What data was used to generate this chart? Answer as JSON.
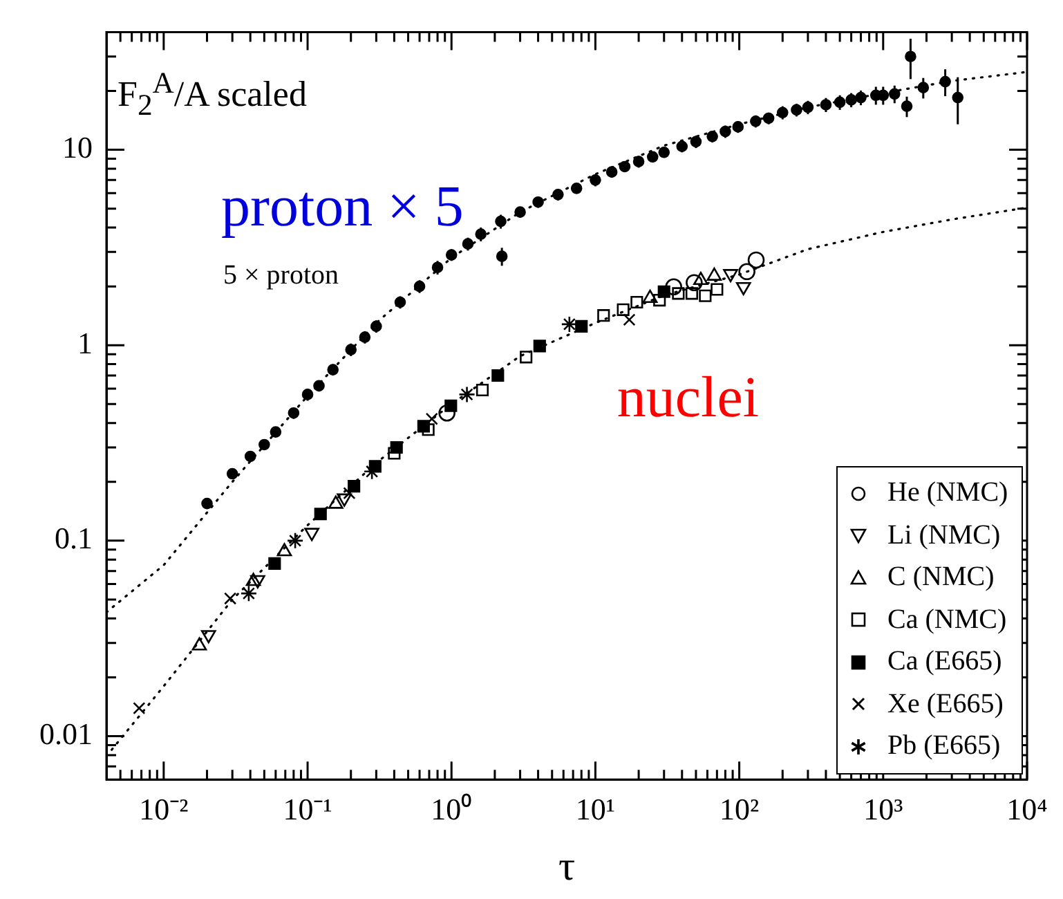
{
  "chart_data": {
    "type": "scatter",
    "xlabel": "τ",
    "log": "xy",
    "grid": false,
    "legend": "bottom right",
    "xlim": [
      0.004,
      10000
    ],
    "ylim": [
      0.006,
      40
    ],
    "xticks": [
      {
        "value": 0.005,
        "label": null
      },
      {
        "value": 0.006,
        "label": null
      },
      {
        "value": 0.007,
        "label": null
      },
      {
        "value": 0.008,
        "label": null
      },
      {
        "value": 0.009,
        "label": null
      },
      {
        "value": 0.01,
        "label": "10⁻²"
      },
      {
        "value": 0.02,
        "label": null
      },
      {
        "value": 0.03,
        "label": null
      },
      {
        "value": 0.04,
        "label": null
      },
      {
        "value": 0.05,
        "label": null
      },
      {
        "value": 0.06,
        "label": null
      },
      {
        "value": 0.07,
        "label": null
      },
      {
        "value": 0.08,
        "label": null
      },
      {
        "value": 0.09,
        "label": null
      },
      {
        "value": 0.1,
        "label": "10⁻¹"
      },
      {
        "value": 0.2,
        "label": null
      },
      {
        "value": 0.3,
        "label": null
      },
      {
        "value": 0.4,
        "label": null
      },
      {
        "value": 0.5,
        "label": null
      },
      {
        "value": 0.6,
        "label": null
      },
      {
        "value": 0.7,
        "label": null
      },
      {
        "value": 0.8,
        "label": null
      },
      {
        "value": 0.9,
        "label": null
      },
      {
        "value": 1,
        "label": "10⁰"
      },
      {
        "value": 2,
        "label": null
      },
      {
        "value": 3,
        "label": null
      },
      {
        "value": 4,
        "label": null
      },
      {
        "value": 5,
        "label": null
      },
      {
        "value": 6,
        "label": null
      },
      {
        "value": 7,
        "label": null
      },
      {
        "value": 8,
        "label": null
      },
      {
        "value": 9,
        "label": null
      },
      {
        "value": 10,
        "label": "10¹"
      },
      {
        "value": 20,
        "label": null
      },
      {
        "value": 30,
        "label": null
      },
      {
        "value": 40,
        "label": null
      },
      {
        "value": 50,
        "label": null
      },
      {
        "value": 60,
        "label": null
      },
      {
        "value": 70,
        "label": null
      },
      {
        "value": 80,
        "label": null
      },
      {
        "value": 90,
        "label": null
      },
      {
        "value": 100,
        "label": "10²"
      },
      {
        "value": 200,
        "label": null
      },
      {
        "value": 300,
        "label": null
      },
      {
        "value": 400,
        "label": null
      },
      {
        "value": 500,
        "label": null
      },
      {
        "value": 600,
        "label": null
      },
      {
        "value": 700,
        "label": null
      },
      {
        "value": 800,
        "label": null
      },
      {
        "value": 900,
        "label": null
      },
      {
        "value": 1000,
        "label": "10³"
      },
      {
        "value": 2000,
        "label": null
      },
      {
        "value": 3000,
        "label": null
      },
      {
        "value": 4000,
        "label": null
      },
      {
        "value": 5000,
        "label": null
      },
      {
        "value": 6000,
        "label": null
      },
      {
        "value": 7000,
        "label": null
      },
      {
        "value": 8000,
        "label": null
      },
      {
        "value": 9000,
        "label": null
      },
      {
        "value": 10000,
        "label": "10⁴"
      }
    ],
    "yticks": [
      {
        "value": 0.007,
        "label": null
      },
      {
        "value": 0.008,
        "label": null
      },
      {
        "value": 0.009,
        "label": null
      },
      0.01,
      {
        "value": 0.02,
        "label": null
      },
      {
        "value": 0.03,
        "label": null
      },
      {
        "value": 0.04,
        "label": null
      },
      {
        "value": 0.05,
        "label": null
      },
      {
        "value": 0.06,
        "label": null
      },
      {
        "value": 0.07,
        "label": null
      },
      {
        "value": 0.08,
        "label": null
      },
      {
        "value": 0.09,
        "label": null
      },
      0.1,
      {
        "value": 0.2,
        "label": null
      },
      {
        "value": 0.3,
        "label": null
      },
      {
        "value": 0.4,
        "label": null
      },
      {
        "value": 0.5,
        "label": null
      },
      {
        "value": 0.6,
        "label": null
      },
      {
        "value": 0.7,
        "label": null
      },
      {
        "value": 0.8,
        "label": null
      },
      {
        "value": 0.9,
        "label": null
      },
      1,
      {
        "value": 2,
        "label": null
      },
      {
        "value": 3,
        "label": null
      },
      {
        "value": 4,
        "label": null
      },
      {
        "value": 5,
        "label": null
      },
      {
        "value": 6,
        "label": null
      },
      {
        "value": 7,
        "label": null
      },
      {
        "value": 8,
        "label": null
      },
      {
        "value": 9,
        "label": null
      },
      10,
      {
        "value": 20,
        "label": null
      },
      {
        "value": 30,
        "label": null
      }
    ],
    "annotations": [
      "F$_{2}$$^{A}$/A  scaled",
      "proton × 5",
      "5 × proton",
      "nuclei"
    ],
    "series": [
      {
        "type": "line",
        "color": "#000000",
        "line_style": "dotted",
        "marker": "none",
        "x": [
          0.004,
          0.01,
          0.03,
          0.1,
          0.3,
          1,
          3,
          10,
          30,
          100,
          300,
          1000,
          3000,
          10000
        ],
        "values": [
          0.043,
          0.075,
          0.2,
          0.55,
          1.3,
          2.8,
          4.8,
          7.5,
          10.5,
          13.5,
          16.5,
          19.5,
          22.5,
          25
        ]
      },
      {
        "type": "line",
        "color": "#000000",
        "line_style": "dotted",
        "marker": "none",
        "x": [
          0.004,
          0.01,
          0.03,
          0.1,
          0.3,
          1,
          3,
          10,
          30,
          100,
          300,
          1000,
          3000,
          10000
        ],
        "values": [
          0.0079,
          0.018,
          0.05,
          0.12,
          0.25,
          0.5,
          0.88,
          1.3,
          1.8,
          2.3,
          3.1,
          3.8,
          4.4,
          5.06
        ]
      },
      {
        "type": "scatter",
        "color": "#000000",
        "marker": "circle",
        "x": [
          0.02,
          0.03,
          0.04,
          0.05,
          0.06,
          0.08,
          0.1,
          0.12,
          0.15,
          0.2,
          0.25,
          0.3,
          0.44,
          0.6,
          0.8,
          1,
          1.3,
          1.6,
          2.2,
          2.24,
          3,
          4,
          5.5,
          7.4,
          10,
          13,
          16,
          20,
          25,
          30,
          40,
          50,
          65,
          80,
          98,
          130,
          160,
          200,
          250,
          300,
          400,
          500,
          600,
          700,
          890,
          1000,
          1200,
          1460,
          1550,
          1900,
          2700,
          3300
        ],
        "values": [
          0.155,
          0.22,
          0.27,
          0.31,
          0.36,
          0.45,
          0.56,
          0.62,
          0.75,
          0.95,
          1.1,
          1.25,
          1.66,
          2.0,
          2.5,
          2.9,
          3.3,
          3.7,
          4.3,
          2.85,
          4.8,
          5.4,
          5.9,
          6.35,
          7.0,
          7.7,
          8.2,
          8.7,
          9.2,
          9.7,
          10.4,
          11,
          11.7,
          12.4,
          13.1,
          14,
          14.5,
          15.5,
          16,
          16.5,
          17,
          17.5,
          18,
          18.5,
          19,
          19,
          19.3,
          16.7,
          30,
          20.8,
          22.3,
          18.5
        ],
        "errors": [
          0.01,
          0.01,
          0.015,
          0.015,
          0.02,
          0.03,
          0.04,
          0.04,
          0.05,
          0.07,
          0.08,
          0.09,
          0.12,
          0.15,
          0.2,
          0.2,
          0.25,
          0.3,
          0.35,
          0.3,
          0.3,
          0.35,
          0.4,
          0.4,
          0.5,
          0.5,
          0.5,
          0.6,
          0.6,
          0.6,
          0.7,
          0.8,
          0.8,
          0.9,
          0.9,
          1,
          1,
          1.2,
          1.2,
          1.3,
          1.4,
          1.5,
          1.5,
          1.6,
          2,
          2,
          2,
          2,
          7,
          2.5,
          3.5,
          5
        ]
      },
      {
        "type": "scatter",
        "name": "He (NMC)",
        "color": "#000000",
        "marker": "circle",
        "x": [
          0.93,
          35,
          48.6,
          113,
          131
        ],
        "values": [
          0.45,
          1.99,
          2.09,
          2.38,
          2.73
        ]
      },
      {
        "type": "scatter",
        "name": "Li (NMC)",
        "color": "#000000",
        "marker": "triangle_down",
        "x": [
          0.0205,
          0.045,
          0.107,
          0.18,
          87,
          107
        ],
        "values": [
          0.033,
          0.063,
          0.11,
          0.165,
          2.32,
          1.99
        ]
      },
      {
        "type": "scatter",
        "name": "C (NMC)",
        "color": "#000000",
        "marker": "triangle",
        "x": [
          0.0177,
          0.042,
          0.069,
          0.157,
          24,
          54,
          67
        ],
        "values": [
          0.029,
          0.062,
          0.088,
          0.154,
          1.74,
          2.15,
          2.26
        ]
      },
      {
        "type": "scatter",
        "name": "Ca (NMC)",
        "color": "#000000",
        "marker": "square",
        "x": [
          0.4,
          0.69,
          1.64,
          3.3,
          11.4,
          15.6,
          19.4,
          27.9,
          37.7,
          46.8,
          58,
          70
        ],
        "values": [
          0.28,
          0.37,
          0.59,
          0.87,
          1.42,
          1.52,
          1.66,
          1.7,
          1.84,
          1.84,
          1.79,
          1.93
        ]
      },
      {
        "type": "scatter",
        "name": "Ca (E665)",
        "color": "#000000",
        "marker": "square",
        "x": [
          0.059,
          0.123,
          0.21,
          0.295,
          0.415,
          0.64,
          0.99,
          2.1,
          4.1,
          8.0,
          30
        ],
        "values": [
          0.0764,
          0.137,
          0.19,
          0.24,
          0.3,
          0.385,
          0.49,
          0.7,
          0.99,
          1.25,
          1.88
        ]
      },
      {
        "type": "scatter",
        "name": "Xe (E665)",
        "color": "#000000",
        "marker": "cross",
        "x": [
          0.00675,
          0.029,
          0.195,
          0.73,
          17.2
        ],
        "values": [
          0.0139,
          0.0506,
          0.175,
          0.42,
          1.35
        ]
      },
      {
        "type": "scatter",
        "name": "Pb (E665)",
        "color": "#000000",
        "marker": "cross",
        "x": [
          0.039,
          0.082,
          0.28,
          1.28,
          6.6
        ],
        "values": [
          0.0537,
          0.1,
          0.226,
          0.56,
          1.28
        ]
      }
    ]
  }
}
